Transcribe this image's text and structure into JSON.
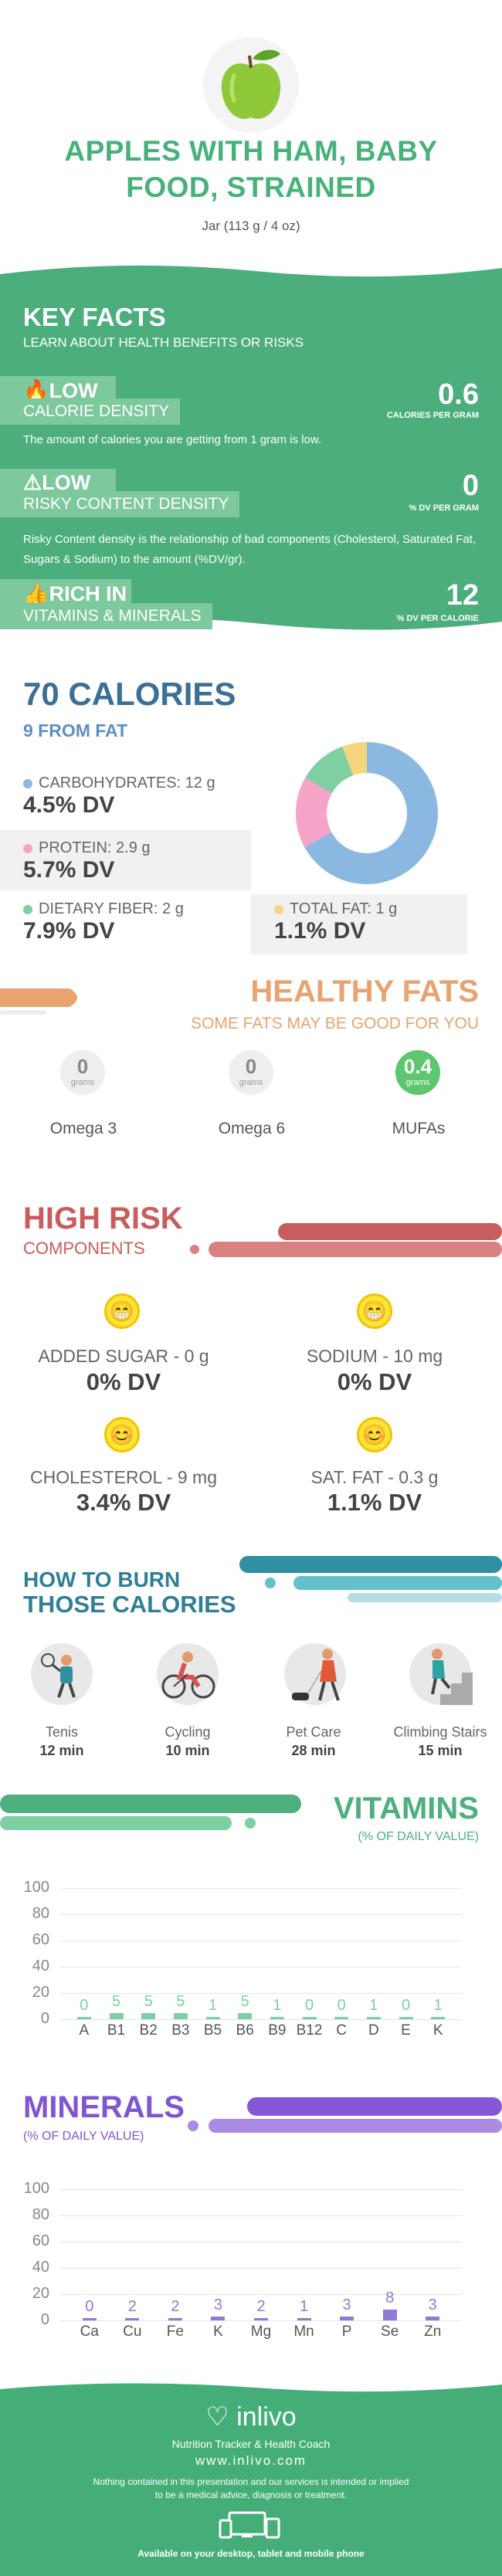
{
  "header": {
    "title_line1": "APPLES WITH HAM, BABY",
    "title_line2": "FOOD, STRAINED",
    "serving": "Jar (113 g / 4 oz)"
  },
  "key_facts": {
    "title": "KEY FACTS",
    "subtitle": "LEARN ABOUT HEALTH BENEFITS OR RISKS",
    "items": [
      {
        "tag": "LOW",
        "icon": "flame-icon",
        "label": "CALORIE DENSITY",
        "value": "0.6",
        "unit": "CALORIES PER GRAM",
        "desc": "The amount of calories you are getting from 1 gram is low."
      },
      {
        "tag": "LOW",
        "icon": "warning-icon",
        "label": "RISKY CONTENT DENSITY",
        "value": "0",
        "unit": "% DV PER GRAM",
        "desc": "Risky Content density is the relationship of bad components (Cholesterol, Saturated Fat, Sugars & Sodium) to the amount (%DV/gr)."
      },
      {
        "tag": "RICH  IN",
        "icon": "thumbs-up-icon",
        "label": "VITAMINS & MINERALS",
        "value": "12",
        "unit": "% DV PER CALORIE",
        "desc": ""
      }
    ]
  },
  "calories": {
    "title": "70 CALORIES",
    "from_fat": "9 FROM FAT",
    "nutrients": [
      {
        "name": "CARBOHYDRATES: 12 g",
        "dv": "4.5% DV",
        "color": "#8ab8e0"
      },
      {
        "name": "PROTEIN: 2.9 g",
        "dv": "5.7% DV",
        "color": "#f5a3c7"
      },
      {
        "name": "DIETARY FIBER: 2 g",
        "dv": "7.9% DV",
        "color": "#7ecfa2"
      },
      {
        "name": "TOTAL FAT: 1 g",
        "dv": "1.1% DV",
        "color": "#f7d57a"
      }
    ],
    "donut": [
      {
        "label": "Carbohydrates",
        "value": 12,
        "color": "#8ab8e0"
      },
      {
        "label": "Protein",
        "value": 2.9,
        "color": "#f5a3c7"
      },
      {
        "label": "Dietary Fiber",
        "value": 2,
        "color": "#7ecfa2"
      },
      {
        "label": "Total Fat",
        "value": 1,
        "color": "#f7d57a"
      }
    ]
  },
  "healthy_fats": {
    "title": "HEALTHY FATS",
    "subtitle": "SOME FATS MAY BE GOOD FOR YOU",
    "items": [
      {
        "value": "0",
        "unit": "grams",
        "name": "Omega 3"
      },
      {
        "value": "0",
        "unit": "grams",
        "name": "Omega 6"
      },
      {
        "value": "0.4",
        "unit": "grams",
        "name": "MUFAs"
      }
    ]
  },
  "high_risk": {
    "title": "HIGH RISK",
    "subtitle": "COMPONENTS",
    "items": [
      {
        "name": "ADDED SUGAR - 0 g",
        "dv": "0% DV",
        "face": "grin"
      },
      {
        "name": "SODIUM - 10 mg",
        "dv": "0% DV",
        "face": "grin"
      },
      {
        "name": "CHOLESTEROL - 9 mg",
        "dv": "3.4% DV",
        "face": "smile"
      },
      {
        "name": "SAT. FAT - 0.3 g",
        "dv": "1.1% DV",
        "face": "smile"
      }
    ]
  },
  "burn": {
    "title_line1": "HOW TO BURN",
    "title_line2": "THOSE CALORIES",
    "activities": [
      {
        "name": "Tenis",
        "minutes": "12 min",
        "icon": "tennis-icon"
      },
      {
        "name": "Cycling",
        "minutes": "10 min",
        "icon": "cycling-icon"
      },
      {
        "name": "Pet Care",
        "minutes": "28 min",
        "icon": "dog-walking-icon"
      },
      {
        "name": "Climbing Stairs",
        "minutes": "15 min",
        "icon": "stairs-icon"
      }
    ]
  },
  "vitamins": {
    "title": "VITAMINS",
    "subtitle": "(% OF DAILY VALUE)"
  },
  "minerals": {
    "title": "MINERALS",
    "subtitle": "(% OF DAILY VALUE)"
  },
  "chart_data": [
    {
      "type": "bar",
      "title": "VITAMINS",
      "ylabel": "(% OF DAILY VALUE)",
      "categories": [
        "A",
        "B1",
        "B2",
        "B3",
        "B5",
        "B6",
        "B9",
        "B12",
        "C",
        "D",
        "E",
        "K"
      ],
      "values": [
        0,
        5,
        5,
        5,
        1,
        5,
        1,
        0,
        0,
        1,
        0,
        1
      ],
      "ylim": [
        0,
        100
      ],
      "yticks": [
        0,
        20,
        40,
        60,
        80,
        100
      ],
      "color": "#7ecfa2"
    },
    {
      "type": "bar",
      "title": "MINERALS",
      "ylabel": "(% OF DAILY VALUE)",
      "categories": [
        "Ca",
        "Cu",
        "Fe",
        "K",
        "Mg",
        "Mn",
        "P",
        "Se",
        "Zn"
      ],
      "values": [
        0,
        2,
        2,
        3,
        2,
        1,
        3,
        8,
        3
      ],
      "ylim": [
        0,
        100
      ],
      "yticks": [
        0,
        20,
        40,
        60,
        80,
        100
      ],
      "color": "#8f7ad6"
    }
  ],
  "footer": {
    "brand": "inlivo",
    "tagline": "Nutrition Tracker & Health Coach",
    "url": "www.inlivo.com",
    "disclaimer_line1": "Nothing contained in this presentation and our services is intended or implied",
    "disclaimer_line2": "to be a medical advice, diagnosis or treatment.",
    "available": "Available on your desktop, tablet and mobile phone"
  },
  "colors": {
    "brand_green": "#47b17a",
    "calories_blue": "#3b6f96",
    "healthy_fats_orange": "#e8a371",
    "high_risk_red": "#c75d5d",
    "burn_teal": "#2f8fa3",
    "vitamins_green": "#4cb07f",
    "minerals_purple": "#8458d6"
  }
}
